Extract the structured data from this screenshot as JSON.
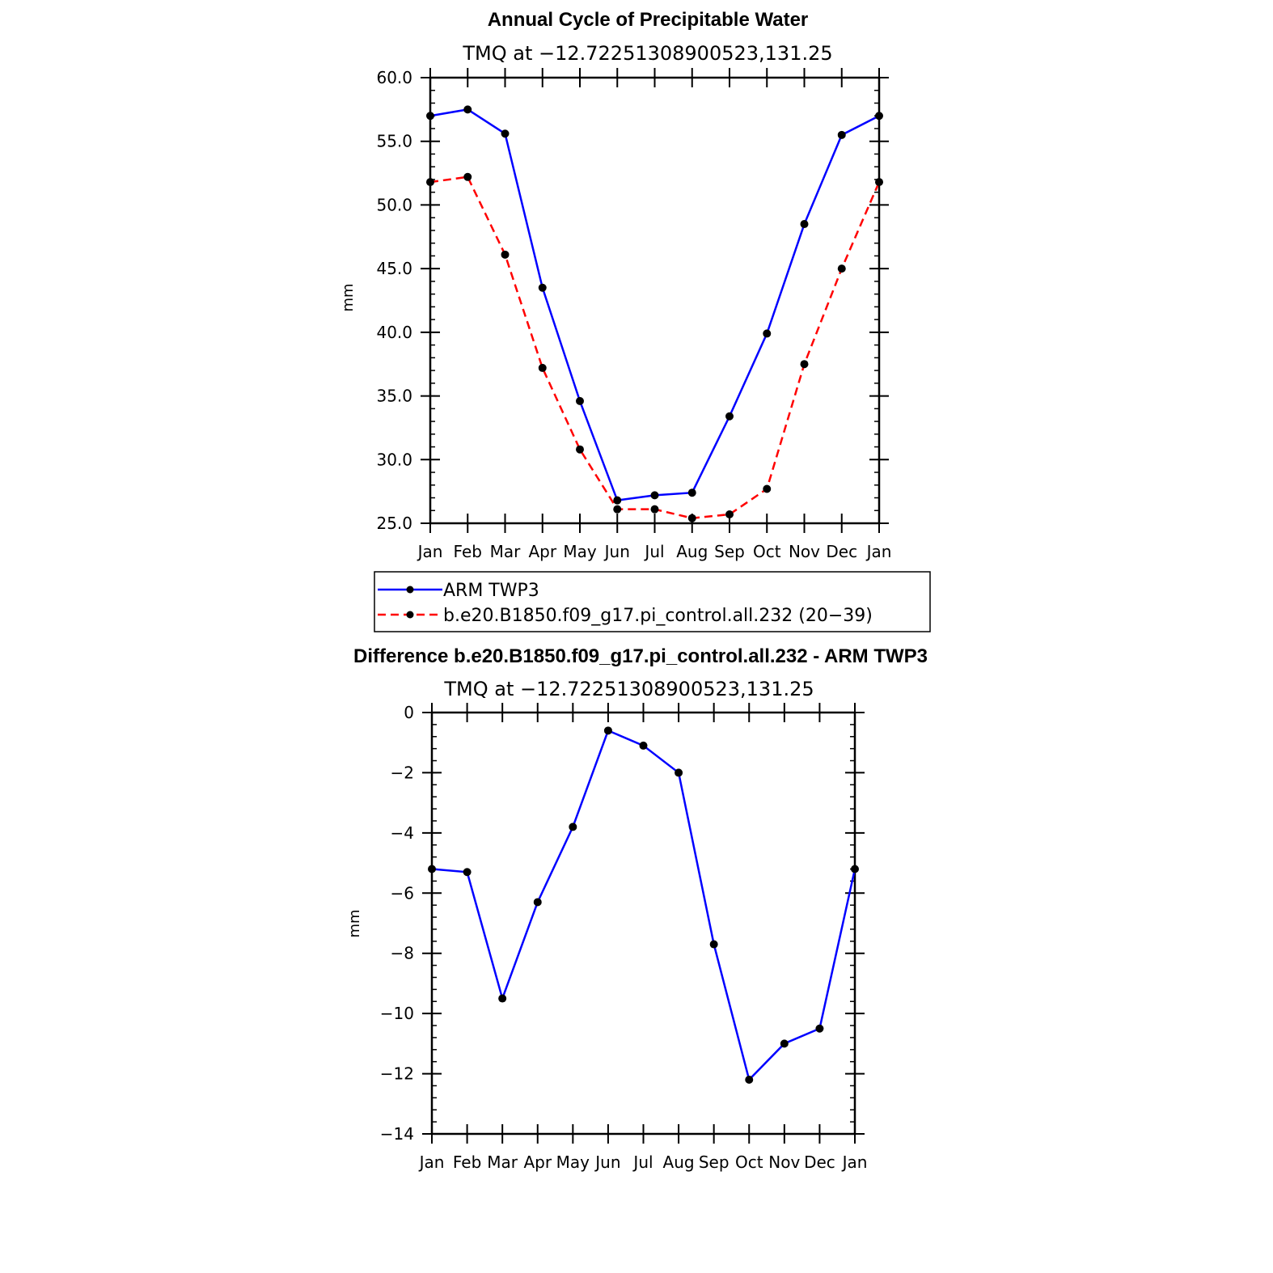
{
  "chart_data": [
    {
      "type": "line",
      "title": "Annual Cycle of Precipitable Water",
      "subtitle": "TMQ at −12.72251308900523,131.25",
      "xlabel": "",
      "ylabel": "mm",
      "categories": [
        "Jan",
        "Feb",
        "Mar",
        "Apr",
        "May",
        "Jun",
        "Jul",
        "Aug",
        "Sep",
        "Oct",
        "Nov",
        "Dec",
        "Jan"
      ],
      "ylim": [
        25.0,
        60.0
      ],
      "yticks": [
        25.0,
        30.0,
        35.0,
        40.0,
        45.0,
        50.0,
        55.0,
        60.0
      ],
      "ytick_labels": [
        "25.0",
        "30.0",
        "35.0",
        "40.0",
        "45.0",
        "50.0",
        "55.0",
        "60.0"
      ],
      "ytick_minor_step": 1.0,
      "legend_position": "bottom",
      "series": [
        {
          "name": "ARM TWP3",
          "color": "#0000ff",
          "dash": "solid",
          "values": [
            57.0,
            57.5,
            55.6,
            43.5,
            34.6,
            26.8,
            27.2,
            27.4,
            33.4,
            39.9,
            48.5,
            55.5,
            57.0
          ]
        },
        {
          "name": "b.e20.B1850.f09_g17.pi_control.all.232 (20−39)",
          "color": "#ff0000",
          "dash": "dashed",
          "values": [
            51.8,
            52.2,
            46.1,
            37.2,
            30.8,
            26.1,
            26.1,
            25.4,
            25.7,
            27.7,
            37.5,
            45.0,
            51.8
          ]
        }
      ]
    },
    {
      "type": "line",
      "title": "Difference b.e20.B1850.f09_g17.pi_control.all.232 - ARM TWP3",
      "subtitle": "TMQ at −12.72251308900523,131.25",
      "xlabel": "",
      "ylabel": "mm",
      "categories": [
        "Jan",
        "Feb",
        "Mar",
        "Apr",
        "May",
        "Jun",
        "Jul",
        "Aug",
        "Sep",
        "Oct",
        "Nov",
        "Dec",
        "Jan"
      ],
      "ylim": [
        -14,
        0
      ],
      "yticks": [
        -14,
        -12,
        -10,
        -8,
        -6,
        -4,
        -2,
        0
      ],
      "ytick_labels": [
        "−14",
        "−12",
        "−10",
        "−8",
        "−6",
        "−4",
        "−2",
        "0"
      ],
      "ytick_minor_step": 0.4,
      "series": [
        {
          "name": "Difference",
          "color": "#0000ff",
          "dash": "solid",
          "values": [
            -5.2,
            -5.3,
            -9.5,
            -6.3,
            -3.8,
            -0.6,
            -1.1,
            -2.0,
            -7.7,
            -12.2,
            -11.0,
            -10.5,
            -5.2
          ]
        }
      ]
    }
  ]
}
